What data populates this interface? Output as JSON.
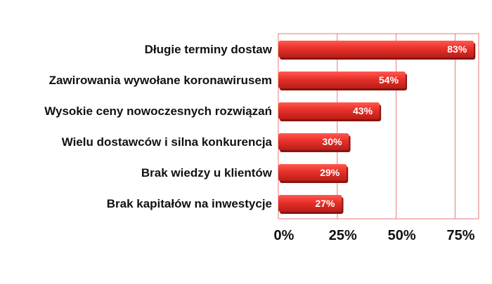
{
  "chart_data": {
    "type": "bar",
    "orientation": "horizontal",
    "categories": [
      "Długie terminy dostaw",
      "Zawirowania wywołane koronawirusem",
      "Wysokie ceny nowoczesnych rozwiązań",
      "Wielu dostawców i silna konkurencja",
      "Brak wiedzy u klientów",
      "Brak kapitałów na inwestycje"
    ],
    "values": [
      83,
      54,
      43,
      30,
      29,
      27
    ],
    "data_labels": [
      "83%",
      "54%",
      "43%",
      "30%",
      "29%",
      "27%"
    ],
    "xlim": [
      0,
      85
    ],
    "xticks": [
      0,
      25,
      50,
      75
    ],
    "xtick_labels": [
      "0%",
      "25%",
      "50%",
      "75%"
    ],
    "title": "",
    "xlabel": "",
    "ylabel": "",
    "grid": true,
    "legend": "none",
    "colors": {
      "bar": "#e8302a",
      "bar_dark": "#8a1410",
      "grid": "#e87a7a",
      "frame": "#e87a7a"
    }
  }
}
